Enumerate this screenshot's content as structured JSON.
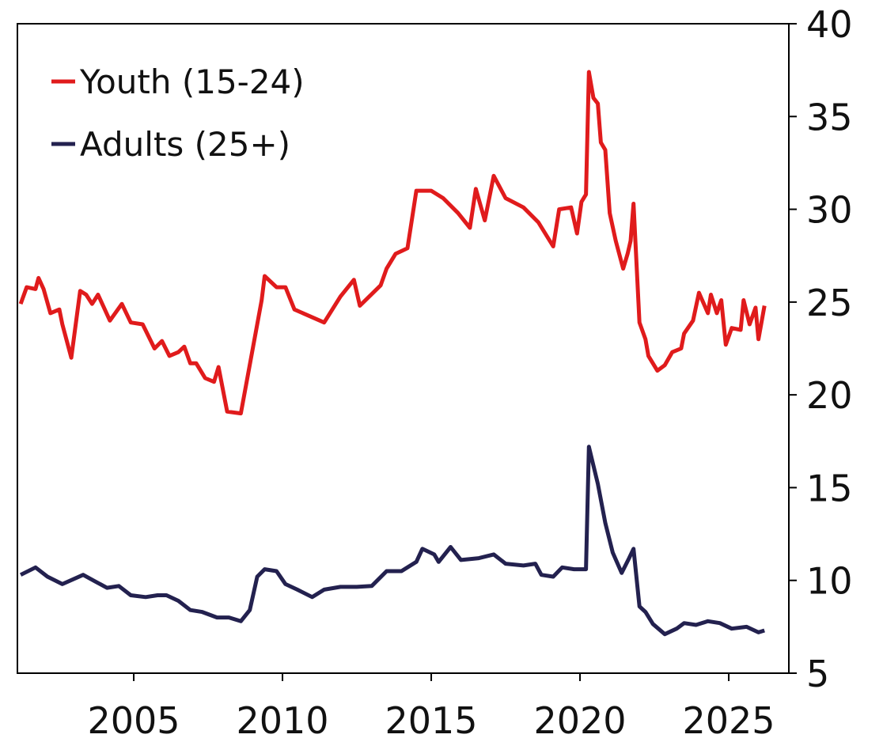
{
  "chart_data": {
    "type": "line",
    "xlim": [
      2001.09,
      2027.02
    ],
    "xticks": [
      2005,
      2010,
      2015,
      2020,
      2025
    ],
    "ylim": [
      5,
      40
    ],
    "yticks": [
      5,
      10,
      15,
      20,
      25,
      30,
      35,
      40
    ],
    "y_axis_side": "right",
    "legend_position": "upper left",
    "grid": false,
    "series": [
      {
        "name": "Youth (15-24)",
        "color": "#e01b1c",
        "x": [
          2001.2,
          2001.4,
          2001.7,
          2001.8,
          2001.97,
          2002.2,
          2002.5,
          2002.6,
          2002.9,
          2003.2,
          2003.4,
          2003.6,
          2003.8,
          2004.2,
          2004.6,
          2004.9,
          2005.3,
          2005.7,
          2005.95,
          2006.2,
          2006.5,
          2006.7,
          2006.9,
          2007.1,
          2007.4,
          2007.7,
          2007.85,
          2008.14,
          2008.6,
          2009.3,
          2009.4,
          2009.8,
          2010.1,
          2010.4,
          2011.4,
          2011.95,
          2012.4,
          2012.6,
          2013.3,
          2013.5,
          2013.8,
          2014.2,
          2014.5,
          2015.0,
          2015.4,
          2015.9,
          2016.3,
          2016.5,
          2016.8,
          2017.1,
          2017.5,
          2018.1,
          2018.6,
          2019.1,
          2019.3,
          2019.7,
          2019.9,
          2020.05,
          2020.2,
          2020.3,
          2020.45,
          2020.6,
          2020.7,
          2020.85,
          2021.0,
          2021.2,
          2021.45,
          2021.6,
          2021.7,
          2021.8,
          2022.0,
          2022.2,
          2022.3,
          2022.6,
          2022.85,
          2023.1,
          2023.4,
          2023.5,
          2023.8,
          2024.0,
          2024.3,
          2024.4,
          2024.6,
          2024.75,
          2024.9,
          2025.1,
          2025.4,
          2025.5,
          2025.7,
          2025.9,
          2026.0,
          2026.2
        ],
        "values": [
          24.9,
          25.8,
          25.7,
          26.3,
          25.7,
          24.4,
          24.6,
          23.8,
          22.0,
          25.6,
          25.4,
          24.9,
          25.4,
          24.0,
          24.9,
          23.9,
          23.8,
          22.5,
          22.9,
          22.1,
          22.3,
          22.6,
          21.7,
          21.7,
          20.9,
          20.7,
          21.5,
          19.1,
          19.0,
          25.1,
          26.4,
          25.8,
          25.8,
          24.6,
          23.9,
          25.3,
          26.2,
          24.8,
          25.9,
          26.8,
          27.6,
          27.9,
          31.0,
          31.0,
          30.6,
          29.8,
          29.0,
          31.1,
          29.4,
          31.8,
          30.6,
          30.1,
          29.3,
          28.0,
          30.0,
          30.1,
          28.7,
          30.4,
          30.8,
          37.4,
          36.0,
          35.7,
          33.6,
          33.2,
          29.8,
          28.3,
          26.8,
          27.6,
          28.3,
          30.3,
          23.9,
          23.0,
          22.1,
          21.3,
          21.6,
          22.3,
          22.5,
          23.3,
          24.0,
          25.5,
          24.4,
          25.4,
          24.4,
          25.1,
          22.7,
          23.6,
          23.5,
          25.1,
          23.8,
          24.7,
          23.0,
          24.8
        ]
      },
      {
        "name": "Adults (25+)",
        "color": "#23214f",
        "x": [
          2001.2,
          2001.7,
          2002.1,
          2002.6,
          2003.3,
          2003.7,
          2004.1,
          2004.5,
          2004.9,
          2005.4,
          2005.8,
          2006.1,
          2006.5,
          2006.9,
          2007.3,
          2007.8,
          2008.2,
          2008.6,
          2008.9,
          2009.15,
          2009.4,
          2009.8,
          2010.1,
          2010.5,
          2011.0,
          2011.4,
          2011.95,
          2012.5,
          2013.0,
          2013.5,
          2014.0,
          2014.5,
          2014.7,
          2015.1,
          2015.25,
          2015.65,
          2016.0,
          2016.6,
          2017.1,
          2017.5,
          2018.1,
          2018.5,
          2018.7,
          2019.1,
          2019.4,
          2019.8,
          2020.2,
          2020.3,
          2020.6,
          2020.85,
          2021.1,
          2021.4,
          2021.65,
          2021.8,
          2022.0,
          2022.2,
          2022.45,
          2022.85,
          2023.25,
          2023.5,
          2023.9,
          2024.3,
          2024.7,
          2025.1,
          2025.6,
          2026.0,
          2026.2
        ],
        "values": [
          10.3,
          10.7,
          10.2,
          9.8,
          10.3,
          9.95,
          9.6,
          9.7,
          9.2,
          9.1,
          9.2,
          9.2,
          8.9,
          8.4,
          8.3,
          8.0,
          8.0,
          7.8,
          8.4,
          10.2,
          10.6,
          10.5,
          9.8,
          9.5,
          9.1,
          9.5,
          9.65,
          9.65,
          9.7,
          10.5,
          10.5,
          11.0,
          11.7,
          11.4,
          11.0,
          11.8,
          11.1,
          11.2,
          11.4,
          10.9,
          10.8,
          10.9,
          10.3,
          10.2,
          10.7,
          10.6,
          10.6,
          17.2,
          15.2,
          13.1,
          11.5,
          10.4,
          11.2,
          11.7,
          8.6,
          8.3,
          7.65,
          7.1,
          7.4,
          7.7,
          7.6,
          7.8,
          7.7,
          7.4,
          7.5,
          7.2,
          7.3
        ]
      }
    ]
  }
}
